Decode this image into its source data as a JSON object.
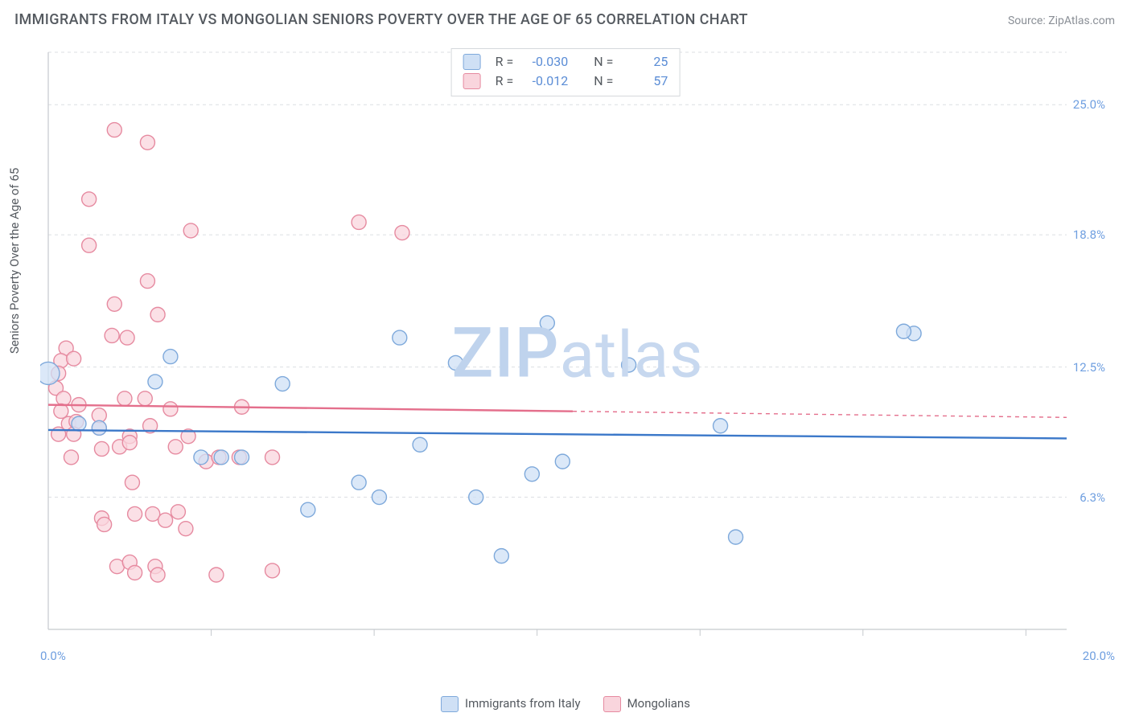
{
  "title": "IMMIGRANTS FROM ITALY VS MONGOLIAN SENIORS POVERTY OVER THE AGE OF 65 CORRELATION CHART",
  "source_prefix": "Source: ",
  "source_name": "ZipAtlas.com",
  "ylabel": "Seniors Poverty Over the Age of 65",
  "watermark_a": "ZIP",
  "watermark_b": "atlas",
  "chart": {
    "type": "scatter",
    "xlim": [
      0,
      20
    ],
    "ylim": [
      0,
      27.5
    ],
    "background_color": "#ffffff",
    "grid_color": "#dcdfe3",
    "grid_dash": "4,4",
    "axis_color": "#c5c9ce",
    "marker_radius": 9,
    "marker_stroke_width": 1.4,
    "trend_line_width": 2.4,
    "yticks": [
      {
        "v": 6.3,
        "label": "6.3%"
      },
      {
        "v": 12.5,
        "label": "12.5%"
      },
      {
        "v": 18.8,
        "label": "18.8%"
      },
      {
        "v": 25.0,
        "label": "25.0%"
      }
    ],
    "xticks_minor": [
      3.2,
      6.4,
      9.6,
      12.8,
      16.0,
      19.2
    ],
    "xlabels": [
      {
        "v": 0,
        "label": "0.0%"
      },
      {
        "v": 20,
        "label": "20.0%"
      }
    ]
  },
  "series": {
    "italy": {
      "label": "Immigrants from Italy",
      "fill": "#cfe0f5",
      "stroke": "#7ea9db",
      "trend_color": "#3b78c9",
      "trend_dash_extend": false,
      "r_label": "R = ",
      "r_value": "-0.030",
      "n_label": "N = ",
      "n_value": "25",
      "trend": {
        "x1": 0,
        "y1": 9.5,
        "x2": 20,
        "y2": 9.1
      },
      "points": [
        [
          0.0,
          12.2,
          14
        ],
        [
          0.6,
          9.8
        ],
        [
          1.0,
          9.6
        ],
        [
          2.1,
          11.8
        ],
        [
          2.4,
          13.0
        ],
        [
          3.0,
          8.2
        ],
        [
          3.4,
          8.2
        ],
        [
          3.8,
          8.2
        ],
        [
          4.6,
          11.7
        ],
        [
          5.1,
          5.7
        ],
        [
          6.1,
          7.0
        ],
        [
          6.5,
          6.3
        ],
        [
          6.9,
          13.9
        ],
        [
          7.3,
          8.8
        ],
        [
          8.0,
          12.7
        ],
        [
          8.4,
          6.3
        ],
        [
          8.9,
          3.5
        ],
        [
          9.5,
          7.4
        ],
        [
          9.8,
          14.6
        ],
        [
          10.1,
          8.0
        ],
        [
          11.4,
          12.6
        ],
        [
          13.2,
          9.7
        ],
        [
          13.5,
          4.4
        ],
        [
          17.0,
          14.1
        ],
        [
          16.8,
          14.2,
          9
        ]
      ]
    },
    "mongolian": {
      "label": "Mongolians",
      "fill": "#f9d5dd",
      "stroke": "#e68aa0",
      "trend_color": "#e46f8c",
      "trend_dash_extend": true,
      "r_label": "R = ",
      "r_value": "-0.012",
      "n_label": "N = ",
      "n_value": "57",
      "trend": {
        "x1": 0,
        "y1": 10.7,
        "x2": 20,
        "y2": 10.1,
        "solid_until": 10.3
      },
      "points": [
        [
          0.35,
          13.4
        ],
        [
          0.25,
          12.8
        ],
        [
          0.2,
          12.2
        ],
        [
          0.15,
          11.5
        ],
        [
          0.3,
          11.0
        ],
        [
          0.25,
          10.4
        ],
        [
          0.4,
          9.8
        ],
        [
          0.2,
          9.3
        ],
        [
          0.5,
          12.9
        ],
        [
          0.55,
          9.9
        ],
        [
          0.5,
          9.3
        ],
        [
          0.6,
          10.7
        ],
        [
          0.45,
          8.2
        ],
        [
          0.8,
          18.3
        ],
        [
          0.8,
          20.5
        ],
        [
          1.0,
          9.6
        ],
        [
          1.0,
          10.2
        ],
        [
          1.05,
          8.6
        ],
        [
          1.05,
          5.3
        ],
        [
          1.1,
          5.0
        ],
        [
          1.3,
          23.8
        ],
        [
          1.25,
          14.0
        ],
        [
          1.3,
          15.5
        ],
        [
          1.4,
          8.7
        ],
        [
          1.35,
          3.0
        ],
        [
          1.5,
          11.0
        ],
        [
          1.55,
          13.9
        ],
        [
          1.6,
          9.2
        ],
        [
          1.6,
          8.9
        ],
        [
          1.6,
          3.2
        ],
        [
          1.65,
          7.0
        ],
        [
          1.7,
          5.5
        ],
        [
          1.7,
          2.7
        ],
        [
          1.95,
          23.2
        ],
        [
          1.95,
          16.6
        ],
        [
          1.9,
          11.0
        ],
        [
          2.0,
          9.7
        ],
        [
          2.05,
          5.5
        ],
        [
          2.1,
          3.0
        ],
        [
          2.15,
          2.6
        ],
        [
          2.3,
          5.2
        ],
        [
          2.4,
          10.5
        ],
        [
          2.5,
          8.7
        ],
        [
          2.55,
          5.6
        ],
        [
          2.7,
          4.8
        ],
        [
          2.75,
          9.2
        ],
        [
          2.8,
          19.0
        ],
        [
          3.1,
          8.0
        ],
        [
          3.3,
          2.6
        ],
        [
          3.35,
          8.2
        ],
        [
          3.75,
          8.2
        ],
        [
          3.8,
          10.6
        ],
        [
          4.4,
          2.8
        ],
        [
          4.4,
          8.2
        ],
        [
          6.1,
          19.4
        ],
        [
          6.95,
          18.9
        ],
        [
          2.15,
          15.0
        ]
      ]
    }
  }
}
